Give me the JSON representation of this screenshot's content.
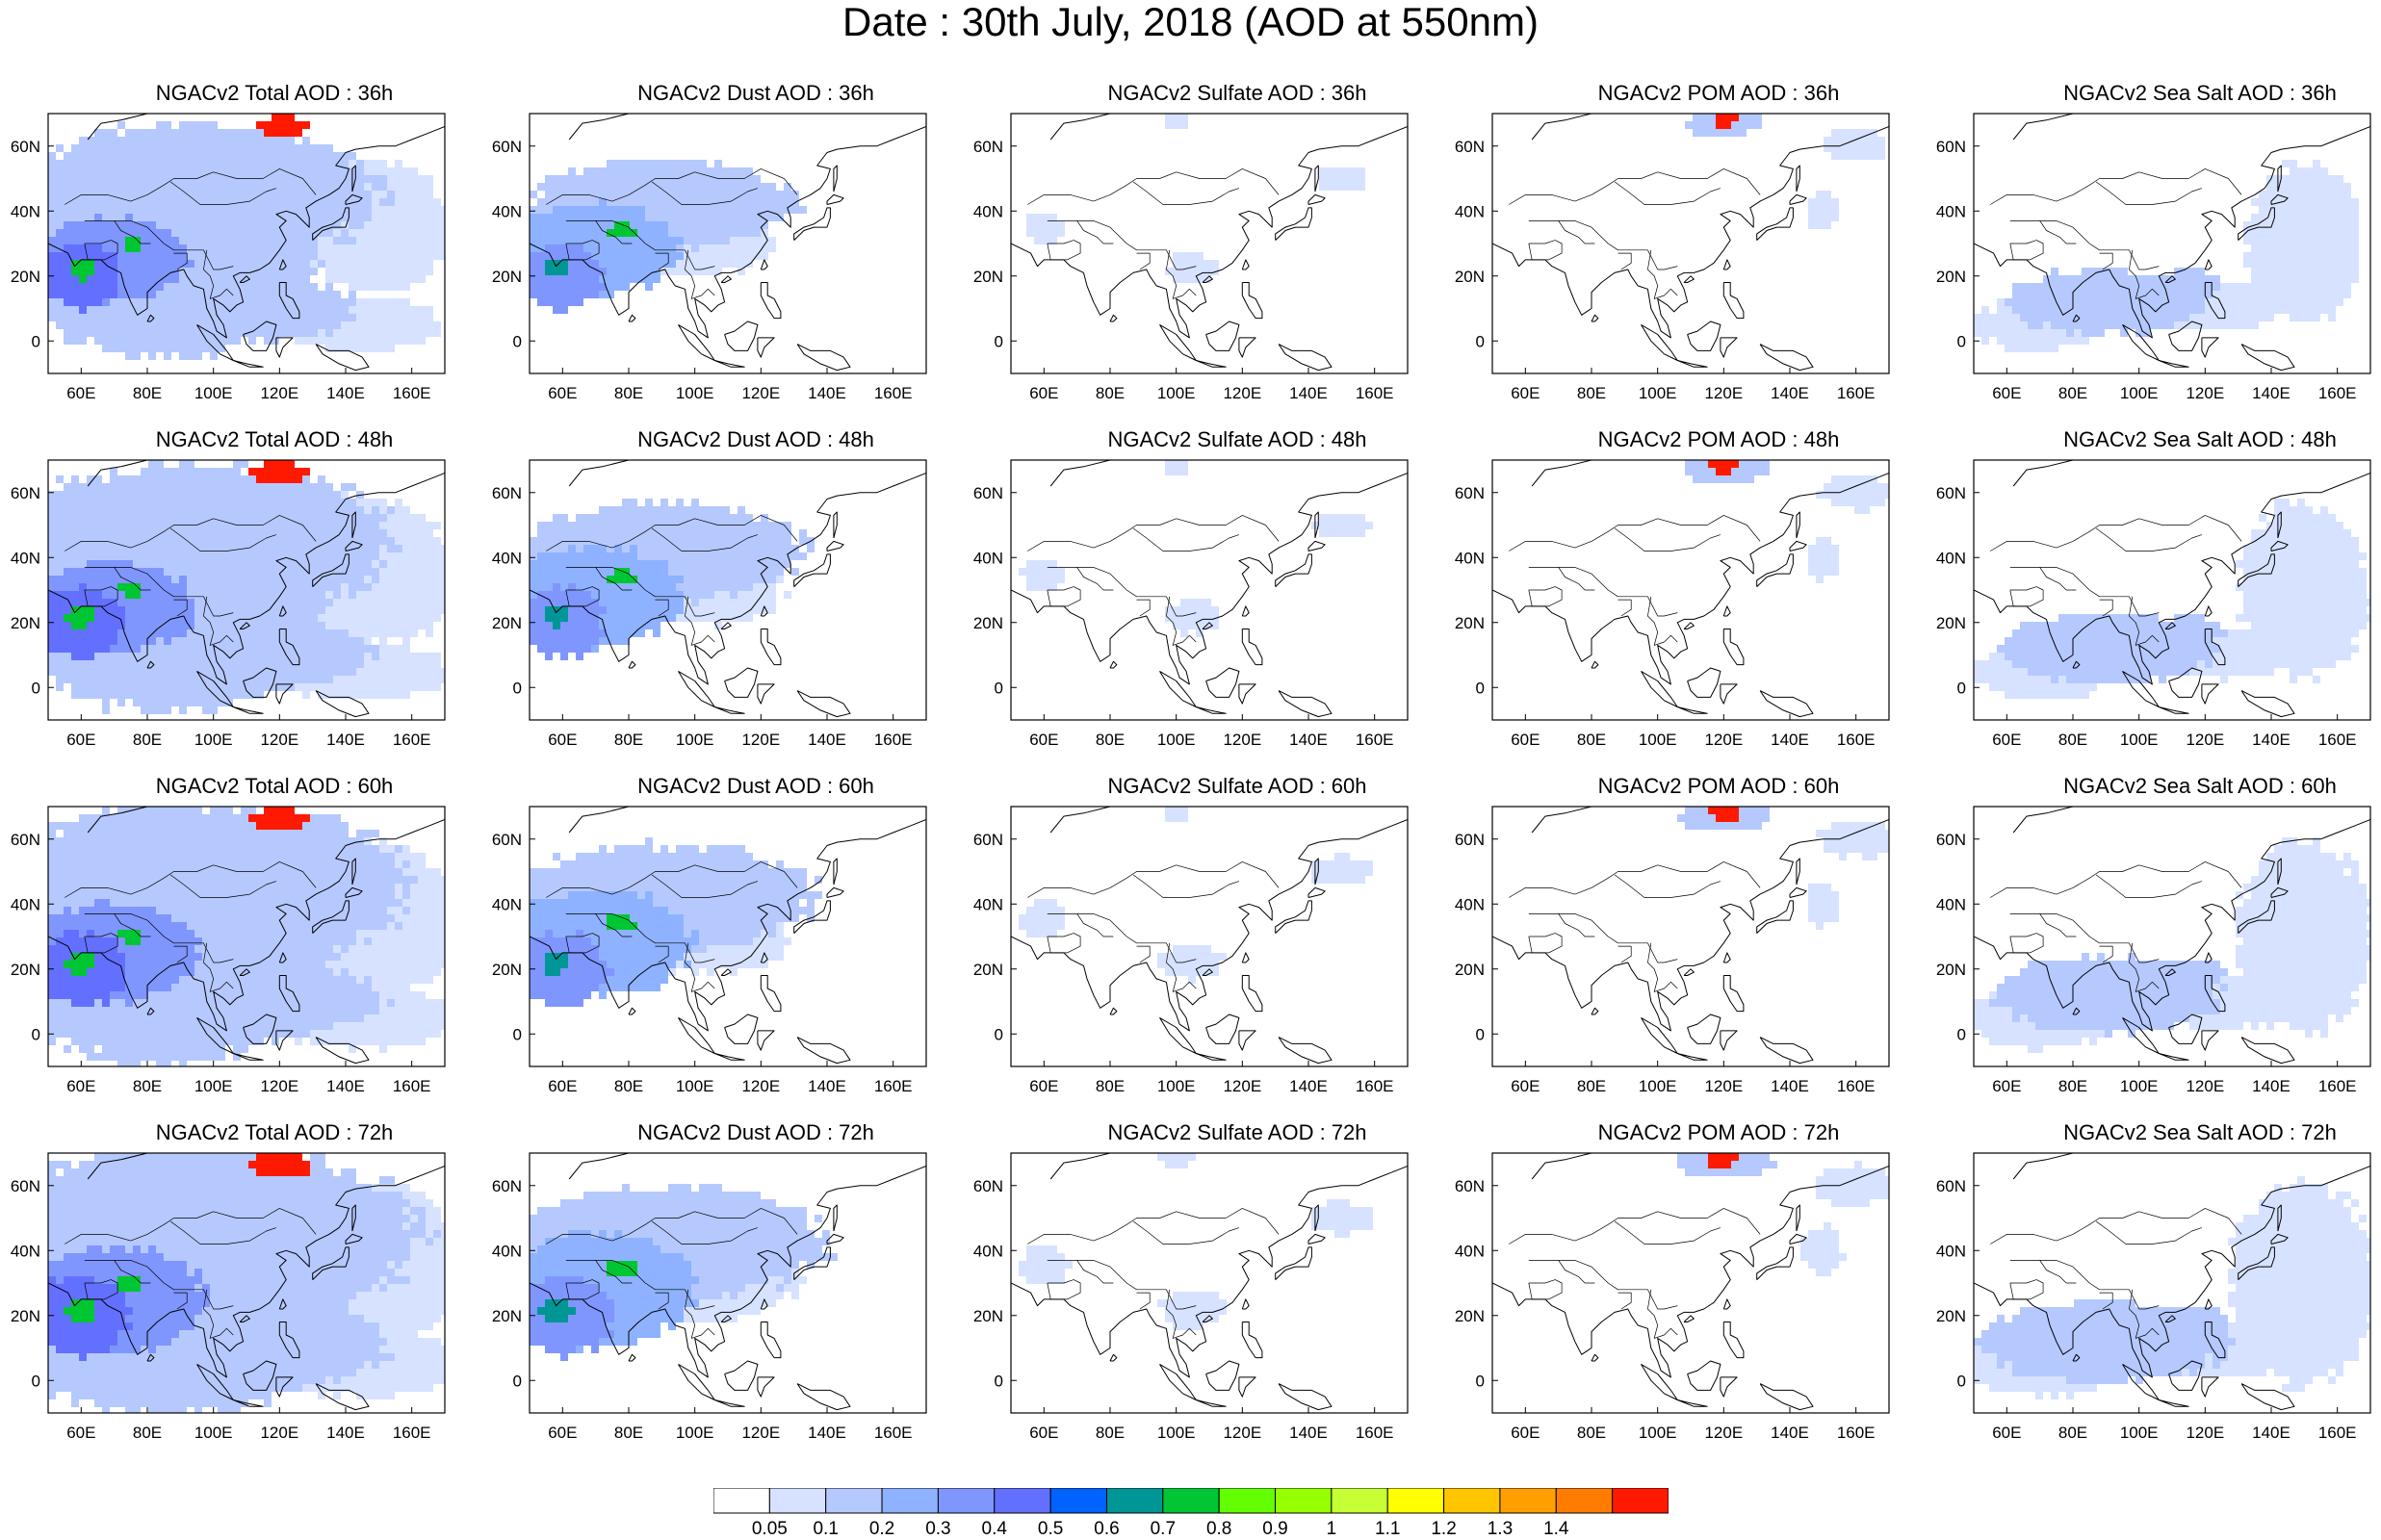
{
  "title": "Date : 30th July, 2018 (AOD at 550nm)",
  "longitude_ticks": [
    "60E",
    "80E",
    "100E",
    "120E",
    "140E",
    "160E"
  ],
  "latitude_ticks": [
    "60N",
    "40N",
    "20N",
    "0"
  ],
  "panels": [
    {
      "title": "NGACv2 Total AOD : 36h",
      "species": "total"
    },
    {
      "title": "NGACv2 Dust AOD : 36h",
      "species": "dust"
    },
    {
      "title": "NGACv2 Sulfate AOD : 36h",
      "species": "sulfate"
    },
    {
      "title": "NGACv2 POM AOD : 36h",
      "species": "pom"
    },
    {
      "title": "NGACv2 Sea Salt AOD : 36h",
      "species": "seasalt"
    },
    {
      "title": "NGACv2 Total AOD : 48h",
      "species": "total"
    },
    {
      "title": "NGACv2 Dust AOD : 48h",
      "species": "dust"
    },
    {
      "title": "NGACv2 Sulfate AOD : 48h",
      "species": "sulfate"
    },
    {
      "title": "NGACv2 POM AOD : 48h",
      "species": "pom"
    },
    {
      "title": "NGACv2 Sea Salt AOD : 48h",
      "species": "seasalt"
    },
    {
      "title": "NGACv2 Total AOD : 60h",
      "species": "total"
    },
    {
      "title": "NGACv2 Dust AOD : 60h",
      "species": "dust"
    },
    {
      "title": "NGACv2 Sulfate AOD : 60h",
      "species": "sulfate"
    },
    {
      "title": "NGACv2 POM AOD : 60h",
      "species": "pom"
    },
    {
      "title": "NGACv2 Sea Salt AOD : 60h",
      "species": "seasalt"
    },
    {
      "title": "NGACv2 Total AOD : 72h",
      "species": "total"
    },
    {
      "title": "NGACv2 Dust AOD : 72h",
      "species": "dust"
    },
    {
      "title": "NGACv2 Sulfate AOD : 72h",
      "species": "sulfate"
    },
    {
      "title": "NGACv2 POM AOD : 72h",
      "species": "pom"
    },
    {
      "title": "NGACv2 Sea Salt  AOD : 72h",
      "species": "seasalt"
    }
  ],
  "colorbar": {
    "labels": [
      "0.05",
      "0.1",
      "0.2",
      "0.3",
      "0.4",
      "0.5",
      "0.6",
      "0.7",
      "0.8",
      "0.9",
      "1",
      "1.1",
      "1.2",
      "1.3",
      "1.4"
    ],
    "colors": [
      "#ffffff",
      "#d6e2ff",
      "#b5c9ff",
      "#8eb2ff",
      "#7f96ff",
      "#6370ff",
      "#0063ff",
      "#009696",
      "#00c633",
      "#63ff00",
      "#96ff00",
      "#c6ff33",
      "#ffff00",
      "#ffc600",
      "#ffa000",
      "#ff7c00",
      "#ff1900"
    ]
  }
}
